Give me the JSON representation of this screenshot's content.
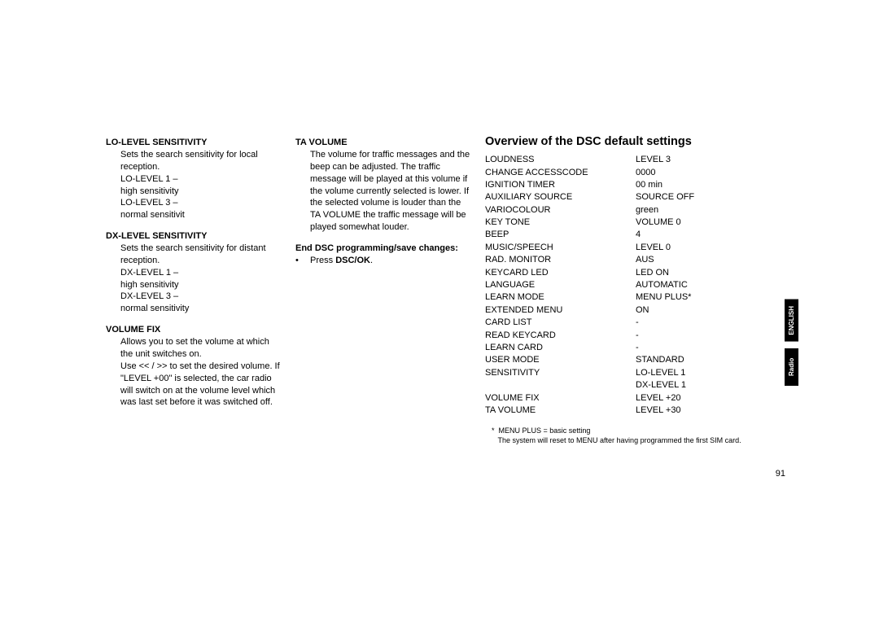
{
  "col1": {
    "lo_level": {
      "heading": "Lo-Level Sensitivity",
      "body": "Sets the search sensitivity for local reception.",
      "line1a": "LO-LEVEL 1 –",
      "line1b": "high sensitivity",
      "line2a": "LO-LEVEL 3 –",
      "line2b": "normal sensitivit"
    },
    "dx_level": {
      "heading": "Dx-Level Sensitivity",
      "body": "Sets the search sensitivity for distant reception.",
      "line1a": "DX-LEVEL 1 –",
      "line1b": "high sensitivity",
      "line2a": "DX-LEVEL 3 –",
      "line2b": "normal sensitivity"
    },
    "volume_fix": {
      "heading": "Volume Fix",
      "body": "Allows you to set the volume at which the unit switches on.\nUse << / >> to set the desired volume. If \"LEVEL +00\" is selected, the car radio will switch on at the volume level which was last set before it was switched off."
    }
  },
  "col2": {
    "ta_volume": {
      "heading": "TA Volume",
      "body": "The volume for traffic messages and the beep can be adjusted. The traffic message will be played at this volume if the volume currently selected is lower. If the selected volume is louder than the TA VOLUME the traffic message will be played somewhat louder."
    },
    "end_dsc": {
      "heading": "End DSC programming/save changes:",
      "bullet_prefix": "•",
      "bullet_text_pre": "Press ",
      "bullet_bold": "DSC/OK",
      "bullet_text_post": "."
    }
  },
  "col3": {
    "heading": "Overview of the DSC default settings",
    "rows": [
      {
        "label": "LOUDNESS",
        "value": "LEVEL 3"
      },
      {
        "label": "CHANGE ACCESSCODE",
        "value": "0000"
      },
      {
        "label": "IGNITION TIMER",
        "value": "00 min"
      },
      {
        "label": "AUXILIARY SOURCE",
        "value": "SOURCE OFF"
      },
      {
        "label": "VARIOCOLOUR",
        "value": "green"
      },
      {
        "label": "KEY TONE",
        "value": "VOLUME 0"
      },
      {
        "label": "BEEP",
        "value": "4"
      },
      {
        "label": "MUSIC/SPEECH",
        "value": "LEVEL 0"
      },
      {
        "label": "RAD. MONITOR",
        "value": "AUS"
      },
      {
        "label": "KEYCARD LED",
        "value": "LED ON"
      },
      {
        "label": "LANGUAGE",
        "value": "AUTOMATIC"
      },
      {
        "label": "LEARN MODE",
        "value": "MENU PLUS*"
      },
      {
        "label": "EXTENDED MENU",
        "value": "ON"
      },
      {
        "label": "CARD LIST",
        "value": "-"
      },
      {
        "label": "READ KEYCARD",
        "value": "-"
      },
      {
        "label": "LEARN CARD",
        "value": "-"
      },
      {
        "label": "USER MODE",
        "value": "STANDARD"
      },
      {
        "label": "SENSITIVITY",
        "value": "LO-LEVEL 1"
      },
      {
        "label": "",
        "value": "DX-LEVEL 1"
      },
      {
        "label": "VOLUME FIX",
        "value": "LEVEL +20"
      },
      {
        "label": "TA VOLUME",
        "value": "LEVEL +30"
      }
    ],
    "footnote_star": "*",
    "footnote1": "MENU PLUS = basic setting",
    "footnote2": "The system will reset to MENU after having programmed the first SIM card."
  },
  "page_number": "91",
  "tabs": {
    "english": "ENGLISH",
    "radio": "Radio"
  }
}
